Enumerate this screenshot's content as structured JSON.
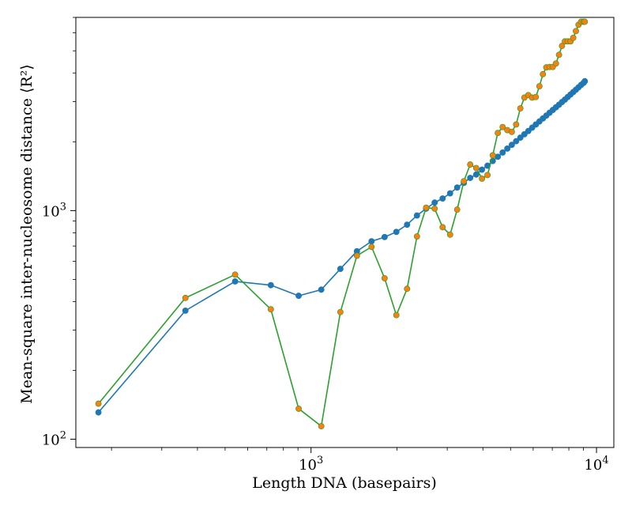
{
  "chart_data": {
    "type": "line",
    "title": "",
    "xlabel": "Length DNA (basepairs)",
    "ylabel": "Mean-square inter-nucleosome distance ⟨R²⟩",
    "xscale": "log",
    "yscale": "log",
    "xlim": [
      150,
      11500
    ],
    "ylim": [
      92,
      7000
    ],
    "grid": false,
    "legend": "none",
    "x_ticks": [
      {
        "value": 1000,
        "base": "10",
        "exp": "3"
      },
      {
        "value": 10000,
        "base": "10",
        "exp": "4"
      }
    ],
    "y_ticks": [
      {
        "value": 100,
        "base": "10",
        "exp": "2"
      },
      {
        "value": 1000,
        "base": "10",
        "exp": "3"
      }
    ],
    "series": [
      {
        "color": "#1f77b4",
        "marker_fill": "#1f77b4",
        "x": [
          180,
          363,
          542,
          723,
          905,
          1086,
          1267,
          1448,
          1629,
          1810,
          1990,
          2170,
          2350,
          2530,
          2710,
          2890,
          3070,
          3250,
          3430,
          3610,
          3790,
          3970,
          4150,
          4330,
          4510,
          4690,
          4870,
          5050,
          5230,
          5410,
          5590,
          5770,
          5950,
          6130,
          6310,
          6490,
          6670,
          6850,
          7030,
          7210,
          7390,
          7570,
          7750,
          7930,
          8110,
          8290,
          8470,
          8650,
          8830,
          9010,
          9100
        ],
        "y": [
          131,
          365,
          490,
          472,
          424,
          451,
          556,
          664,
          734,
          766,
          807,
          868,
          952,
          1020,
          1084,
          1130,
          1190,
          1262,
          1322,
          1390,
          1438,
          1510,
          1572,
          1648,
          1720,
          1795,
          1868,
          1940,
          2012,
          2085,
          2158,
          2230,
          2305,
          2380,
          2454,
          2530,
          2604,
          2680,
          2755,
          2830,
          2905,
          2985,
          3060,
          3140,
          3220,
          3300,
          3380,
          3462,
          3545,
          3620,
          3680
        ]
      },
      {
        "color": "#2ca02c",
        "marker_fill": "#ff7f0e",
        "x": [
          180,
          363,
          542,
          723,
          905,
          1086,
          1267,
          1448,
          1629,
          1810,
          1990,
          2170,
          2350,
          2530,
          2710,
          2890,
          3070,
          3250,
          3430,
          3610,
          3790,
          3970,
          4150,
          4330,
          4510,
          4690,
          4870,
          5050,
          5230,
          5410,
          5590,
          5770,
          5950,
          6130,
          6310,
          6490,
          6670,
          6850,
          7030,
          7210,
          7390,
          7570,
          7750,
          7930,
          8110,
          8290,
          8470,
          8650,
          8830,
          9010,
          9100
        ],
        "y": [
          143,
          415,
          525,
          370,
          136,
          114,
          360,
          635,
          694,
          506,
          349,
          455,
          771,
          1030,
          1020,
          846,
          785,
          1010,
          1345,
          1590,
          1535,
          1380,
          1430,
          1745,
          2185,
          2320,
          2250,
          2210,
          2380,
          2800,
          3120,
          3200,
          3120,
          3140,
          3500,
          3950,
          4230,
          4250,
          4250,
          4400,
          4800,
          5250,
          5500,
          5500,
          5500,
          5700,
          6100,
          6500,
          6700,
          6700,
          6700
        ]
      }
    ]
  }
}
